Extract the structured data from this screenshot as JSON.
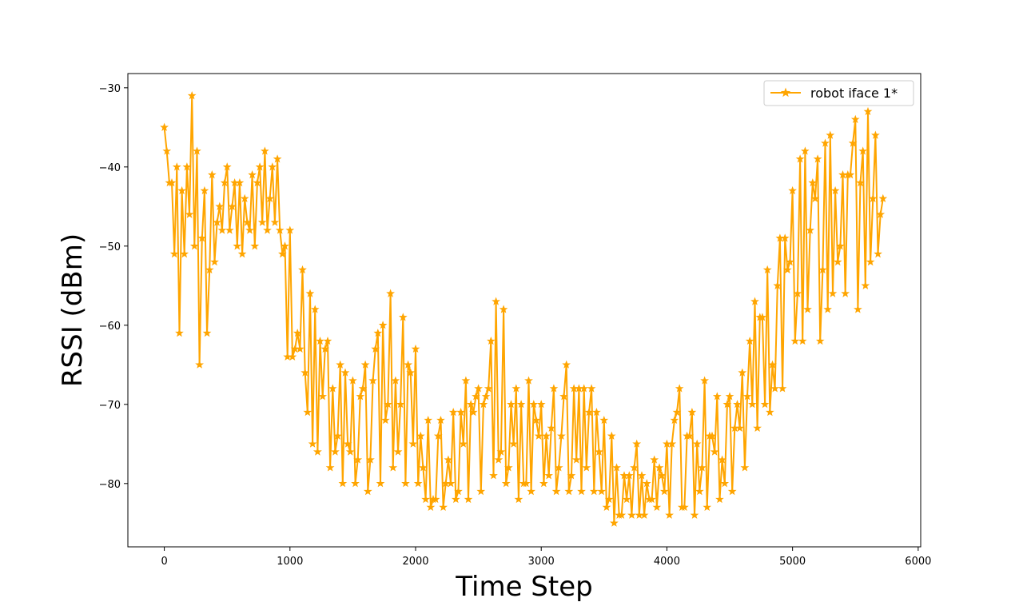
{
  "chart_data": {
    "type": "line",
    "xlabel": "Time Step",
    "ylabel": "RSSI (dBm)",
    "xlim": [
      -290,
      6020
    ],
    "ylim": [
      -88,
      -28.2
    ],
    "x_ticks": [
      0,
      1000,
      2000,
      3000,
      4000,
      5000,
      6000
    ],
    "x_tick_labels": [
      "0",
      "1000",
      "2000",
      "3000",
      "4000",
      "5000",
      "6000"
    ],
    "y_ticks": [
      -30,
      -40,
      -50,
      -60,
      -70,
      -80
    ],
    "y_tick_labels": [
      "−30",
      "−40",
      "−50",
      "−60",
      "−70",
      "−80"
    ],
    "grid": false,
    "legend_position": "top-right",
    "marker": "star",
    "color": "#FFA500",
    "sample_step": 20,
    "series": [
      {
        "name": "robot iface 1*",
        "x_start": 0,
        "x_end": 5720,
        "envelope": [
          [
            0,
            -35,
            -38
          ],
          [
            100,
            -40,
            -61
          ],
          [
            210,
            -31,
            -50
          ],
          [
            260,
            -38,
            -65
          ],
          [
            320,
            -43,
            -61
          ],
          [
            380,
            -41,
            -52
          ],
          [
            500,
            -40,
            -48
          ],
          [
            600,
            -42,
            -51
          ],
          [
            700,
            -41,
            -50
          ],
          [
            800,
            -38,
            -48
          ],
          [
            900,
            -39,
            -48
          ],
          [
            960,
            -50,
            -64
          ],
          [
            1000,
            -48,
            -64
          ],
          [
            1100,
            -53,
            -66
          ],
          [
            1150,
            -56,
            -75
          ],
          [
            1200,
            -58,
            -76
          ],
          [
            1300,
            -62,
            -78
          ],
          [
            1400,
            -65,
            -80
          ],
          [
            1500,
            -67,
            -80
          ],
          [
            1600,
            -65,
            -81
          ],
          [
            1700,
            -61,
            -80
          ],
          [
            1800,
            -56,
            -78
          ],
          [
            1900,
            -59,
            -80
          ],
          [
            2000,
            -63,
            -80
          ],
          [
            2100,
            -72,
            -83
          ],
          [
            2200,
            -72,
            -83
          ],
          [
            2300,
            -71,
            -82
          ],
          [
            2400,
            -67,
            -82
          ],
          [
            2500,
            -68,
            -81
          ],
          [
            2600,
            -62,
            -79
          ],
          [
            2640,
            -57,
            -77
          ],
          [
            2700,
            -58,
            -80
          ],
          [
            2800,
            -68,
            -82
          ],
          [
            2900,
            -67,
            -81
          ],
          [
            3000,
            -70,
            -80
          ],
          [
            3100,
            -68,
            -81
          ],
          [
            3200,
            -65,
            -81
          ],
          [
            3300,
            -68,
            -81
          ],
          [
            3400,
            -68,
            -81
          ],
          [
            3500,
            -72,
            -83
          ],
          [
            3550,
            -74,
            -85
          ],
          [
            3600,
            -78,
            -84
          ],
          [
            3700,
            -79,
            -84
          ],
          [
            3760,
            -75,
            -84
          ],
          [
            3800,
            -79,
            -84
          ],
          [
            3900,
            -77,
            -83
          ],
          [
            4000,
            -75,
            -84
          ],
          [
            4100,
            -68,
            -83
          ],
          [
            4200,
            -71,
            -84
          ],
          [
            4300,
            -67,
            -83
          ],
          [
            4400,
            -69,
            -82
          ],
          [
            4500,
            -69,
            -81
          ],
          [
            4600,
            -66,
            -78
          ],
          [
            4700,
            -57,
            -73
          ],
          [
            4800,
            -53,
            -71
          ],
          [
            4900,
            -49,
            -68
          ],
          [
            5000,
            -43,
            -62
          ],
          [
            5050,
            -39,
            -62
          ],
          [
            5100,
            -38,
            -58
          ],
          [
            5200,
            -39,
            -62
          ],
          [
            5250,
            -37,
            -58
          ],
          [
            5300,
            -36,
            -56
          ],
          [
            5400,
            -41,
            -56
          ],
          [
            5480,
            -37,
            -64
          ],
          [
            5500,
            -34,
            -58
          ],
          [
            5560,
            -38,
            -55
          ],
          [
            5600,
            -33,
            -52
          ],
          [
            5650,
            -36,
            -51
          ],
          [
            5720,
            -44,
            -50
          ]
        ]
      }
    ]
  }
}
